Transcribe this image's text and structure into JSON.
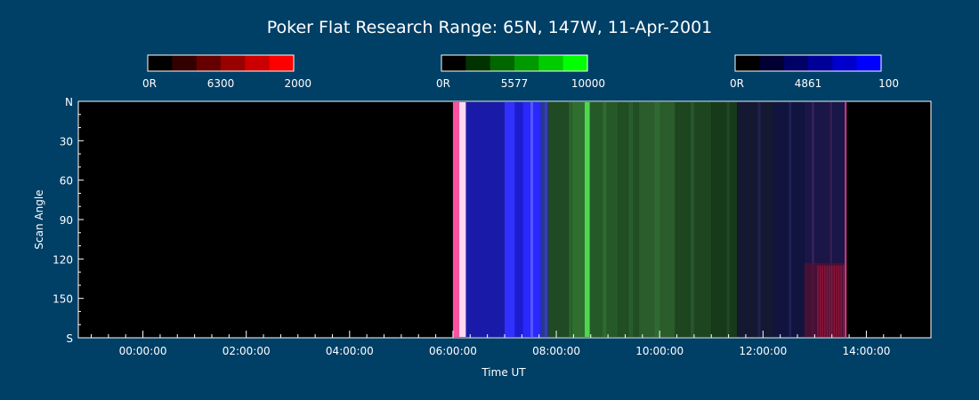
{
  "chart_data": {
    "type": "heatmap",
    "title": "Poker Flat Research Range: 65N, 147W, 11-Apr-2001",
    "xlabel": "Time UT",
    "ylabel": "Scan Angle",
    "x_ticks": [
      "00:00:00",
      "02:00:00",
      "04:00:00",
      "06:00:00",
      "08:00:00",
      "10:00:00",
      "12:00:00",
      "14:00:00"
    ],
    "x_tick_hours": [
      0,
      2,
      4,
      6,
      8,
      10,
      12,
      14
    ],
    "xlim_hours": [
      -1.25,
      15.25
    ],
    "y_ticks": [
      "N",
      "30",
      "60",
      "90",
      "120",
      "150",
      "S"
    ],
    "y_tick_values": [
      0,
      30,
      60,
      90,
      120,
      150,
      180
    ],
    "ylim": [
      0,
      180
    ],
    "colorbars": [
      {
        "name": "6300",
        "min_label": "0R",
        "max_label": "2000",
        "colors": [
          "#000000",
          "#330000",
          "#660000",
          "#990000",
          "#cc0000",
          "#ff0000"
        ]
      },
      {
        "name": "5577",
        "min_label": "0R",
        "max_label": "10000",
        "colors": [
          "#000000",
          "#003300",
          "#006600",
          "#009900",
          "#00cc00",
          "#00ff00"
        ]
      },
      {
        "name": "4861",
        "min_label": "0R",
        "max_label": "100",
        "colors": [
          "#000000",
          "#000033",
          "#000066",
          "#000099",
          "#0000cc",
          "#0000ff"
        ]
      }
    ],
    "data_start_hour": 6.0,
    "data_end_hour": 13.6,
    "bands": [
      {
        "start": 6.0,
        "end": 6.12,
        "color": "#ff4fa0"
      },
      {
        "start": 6.12,
        "end": 6.25,
        "color": "#ffd8f0"
      },
      {
        "start": 6.25,
        "end": 7.0,
        "color": "#1a1aa8"
      },
      {
        "start": 7.0,
        "end": 7.2,
        "color": "#3030ff"
      },
      {
        "start": 7.2,
        "end": 7.35,
        "color": "#1c1cd0"
      },
      {
        "start": 7.35,
        "end": 7.7,
        "color": "#2828ff"
      },
      {
        "start": 7.7,
        "end": 7.85,
        "color": "#2a3a8c"
      },
      {
        "start": 7.85,
        "end": 8.3,
        "color": "#1f4a24"
      },
      {
        "start": 8.3,
        "end": 8.55,
        "color": "#2f6e2f"
      },
      {
        "start": 8.55,
        "end": 8.65,
        "color": "#4ed84e"
      },
      {
        "start": 8.65,
        "end": 9.2,
        "color": "#255a28"
      },
      {
        "start": 9.2,
        "end": 9.6,
        "color": "#1f4f22"
      },
      {
        "start": 9.6,
        "end": 10.3,
        "color": "#2a5c2c"
      },
      {
        "start": 10.3,
        "end": 11.0,
        "color": "#1d4520"
      },
      {
        "start": 11.0,
        "end": 11.5,
        "color": "#173a1b"
      },
      {
        "start": 11.5,
        "end": 12.2,
        "color": "#141830"
      },
      {
        "start": 12.2,
        "end": 12.8,
        "color": "#121440"
      },
      {
        "start": 12.8,
        "end": 13.6,
        "color": "#1a1648"
      }
    ],
    "grid": false
  }
}
